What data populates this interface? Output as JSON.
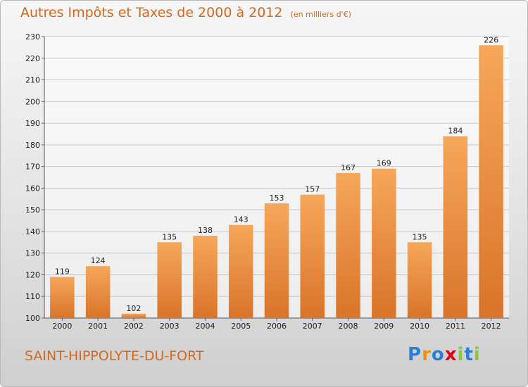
{
  "title": "Autres Impôts et Taxes de 2000 à 2012",
  "unit_note": "(en milliers d'€)",
  "commune": "SAINT-HIPPOLYTE-DU-FORT",
  "brand": {
    "text": "Proxiti",
    "letters": [
      "P",
      "r",
      "o",
      "x",
      "i",
      "t",
      "i"
    ],
    "colors": [
      "#2a7fd4",
      "#f39200",
      "#2a7fd4",
      "#e2001a",
      "#8dc63f",
      "#2a7fd4",
      "#8dc63f"
    ]
  },
  "colors": {
    "title": "#d2691e",
    "bar_light": "#f6a75a",
    "bar_dark": "#d9742a",
    "grid": "#c8c8c8"
  },
  "chart_data": {
    "type": "bar",
    "title": "Autres Impôts et Taxes de 2000 à 2012",
    "subtitle": "(en milliers d'€)",
    "categories": [
      "2000",
      "2001",
      "2002",
      "2003",
      "2004",
      "2005",
      "2006",
      "2007",
      "2008",
      "2009",
      "2010",
      "2011",
      "2012"
    ],
    "values": [
      119,
      124,
      102,
      135,
      138,
      143,
      153,
      157,
      167,
      169,
      135,
      184,
      226
    ],
    "ylim": [
      100,
      230
    ],
    "yticks": [
      100,
      110,
      120,
      130,
      140,
      150,
      160,
      170,
      180,
      190,
      200,
      210,
      220,
      230
    ],
    "grid": true,
    "data_labels": true
  }
}
